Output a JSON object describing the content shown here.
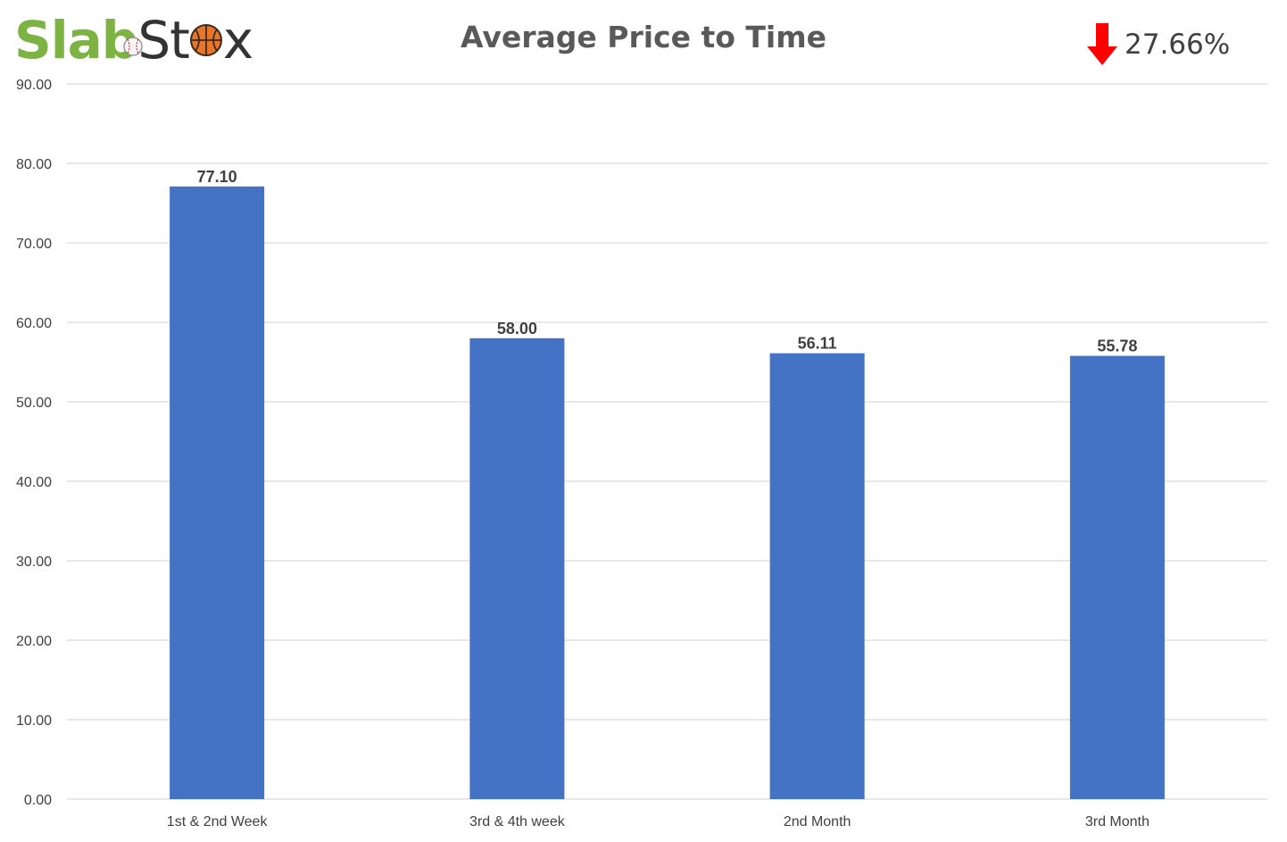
{
  "logo": {
    "part1": "Slab",
    "part2a": "St",
    "part2b": "x",
    "icons": [
      "baseball-icon",
      "basketball-icon"
    ],
    "colors": {
      "slab": "#7cb342",
      "stox": "#333333",
      "basketball": "#e8752a"
    }
  },
  "change": {
    "direction": "down",
    "icon": "arrow-down-icon",
    "value": "27.66%",
    "color": "#ff0000"
  },
  "chart_data": {
    "type": "bar",
    "title": "Average Price to Time",
    "categories": [
      "1st & 2nd Week",
      "3rd & 4th week",
      "2nd Month",
      "3rd Month"
    ],
    "values": [
      77.1,
      58.0,
      56.11,
      55.78
    ],
    "value_labels": [
      "77.10",
      "58.00",
      "56.11",
      "55.78"
    ],
    "ylim": [
      0,
      90
    ],
    "yticks": [
      "0.00",
      "10.00",
      "20.00",
      "30.00",
      "40.00",
      "50.00",
      "60.00",
      "70.00",
      "80.00",
      "90.00"
    ],
    "grid": true,
    "bar_color": "#4472c4",
    "xlabel": "",
    "ylabel": ""
  }
}
